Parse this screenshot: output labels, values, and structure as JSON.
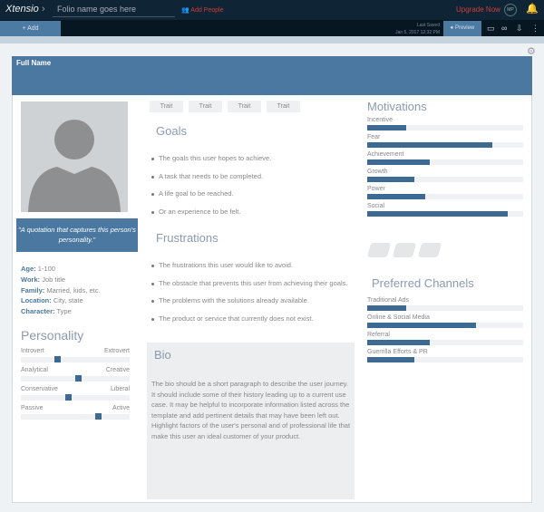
{
  "topbar": {
    "logo": "Xtensio",
    "folio_name": "Folio name goes here",
    "add_people": "Add People",
    "upgrade": "Upgrade Now",
    "avatar": "MP"
  },
  "toolbar": {
    "add": "+ Add",
    "last_saved_label": "Last Saved",
    "last_saved_time": "Jan 5, 2017 12:32 PM",
    "preview": "Preview"
  },
  "persona": {
    "full_name": "Full Name",
    "quote": "\"A quotation that captures this person's personality.\"",
    "info": [
      {
        "k": "Age:",
        "v": "1-100"
      },
      {
        "k": "Work:",
        "v": "Job title"
      },
      {
        "k": "Family:",
        "v": "Married, kids, etc."
      },
      {
        "k": "Location:",
        "v": "City, state"
      },
      {
        "k": "Character:",
        "v": "Type"
      }
    ],
    "personality_title": "Personality",
    "personality": [
      {
        "left": "Introvert",
        "right": "Extrovert",
        "value": 0.33
      },
      {
        "left": "Analytical",
        "right": "Creative",
        "value": 0.53
      },
      {
        "left": "Conservative",
        "right": "Liberal",
        "value": 0.43
      },
      {
        "left": "Passive",
        "right": "Active",
        "value": 0.73
      }
    ],
    "traits": [
      "Trait",
      "Trait",
      "Trait",
      "Trait"
    ],
    "goals_title": "Goals",
    "goals": [
      "The goals this user hopes to achieve.",
      "A task that needs to be completed.",
      "A life goal to be reached.",
      "Or an experience to be felt."
    ],
    "frustrations_title": "Frustrations",
    "frustrations": [
      "The frustrations this user would like to avoid.",
      "The obstacle that prevents this user from achieving their goals.",
      "The problems with the solutions already available.",
      "The product or service that currently does not exist."
    ],
    "bio_title": "Bio",
    "bio": "The bio should be a short paragraph to describe the user journey. It should include some of their history leading up to a current use case. It may be helpful to incorporate information listed across the template and add pertinent details that may have been left out. Highlight factors of the user's personal and of professional life that make this user an ideal customer of your product.",
    "motivations_title": "Motivations",
    "motivations": [
      {
        "label": "Incentive",
        "value": 0.25
      },
      {
        "label": "Fear",
        "value": 0.8
      },
      {
        "label": "Achievement",
        "value": 0.4
      },
      {
        "label": "Growth",
        "value": 0.3
      },
      {
        "label": "Power",
        "value": 0.37
      },
      {
        "label": "Social",
        "value": 0.9
      }
    ],
    "channels_title": "Preferred Channels",
    "channels": [
      {
        "label": "Traditional Ads",
        "value": 0.25
      },
      {
        "label": "Online & Social Media",
        "value": 0.7
      },
      {
        "label": "Referral",
        "value": 0.4
      },
      {
        "label": "Guerrilla Efforts & PR",
        "value": 0.3
      }
    ]
  },
  "colors": {
    "accent": "#4a78a0",
    "bar": "#3d6a92",
    "topbar": "#0f2536",
    "upgrade": "#d23a3a"
  }
}
